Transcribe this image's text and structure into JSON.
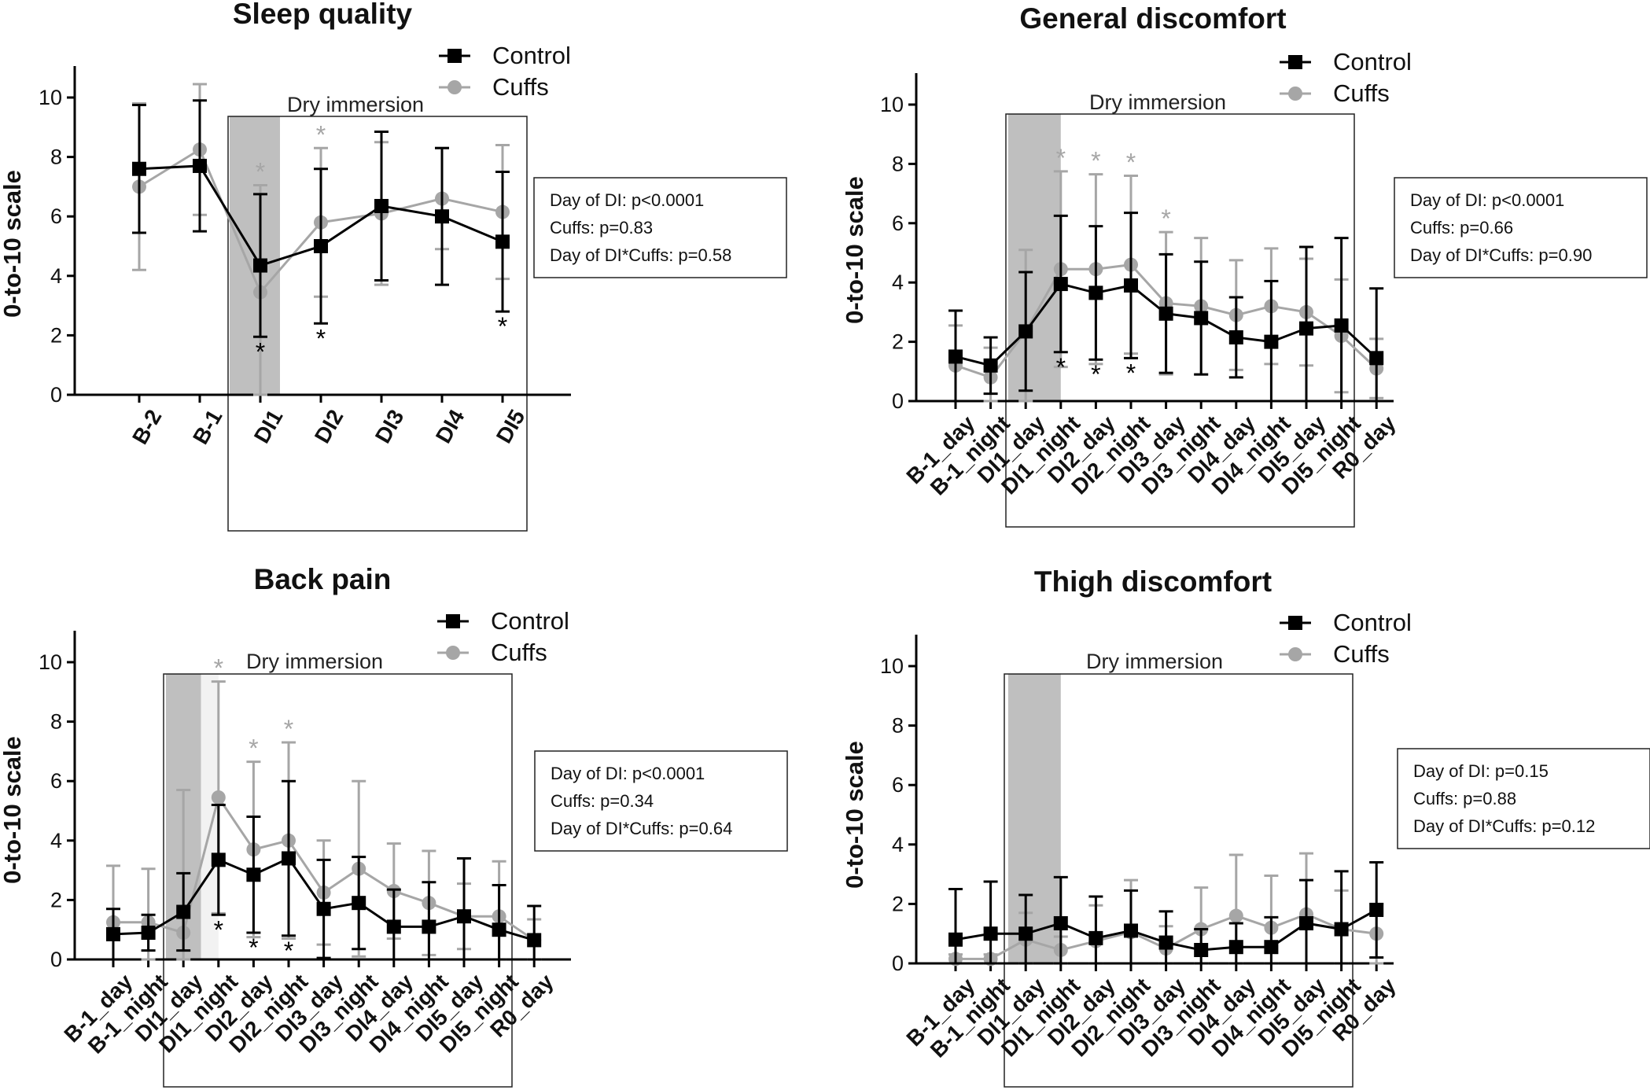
{
  "figure": {
    "legend": {
      "control": "Control",
      "cuffs": "Cuffs"
    },
    "region_label": "Dry immersion",
    "ylabel": "0-to-10 scale",
    "colors": {
      "control": "#000000",
      "cuffs": "#a6a6a6",
      "shade": "#bfbfbf",
      "shade_light": "#f2f2f2"
    }
  },
  "chart_data": [
    {
      "type": "line",
      "title": "Sleep quality",
      "xlabel": "",
      "ylabel": "0-to-10 scale",
      "ylim": [
        0,
        11
      ],
      "yticks": [
        0,
        2,
        4,
        6,
        8,
        10
      ],
      "categories": [
        "B-2",
        "B-1",
        "DI1",
        "DI2",
        "DI3",
        "DI4",
        "DI5"
      ],
      "series": [
        {
          "name": "Control",
          "values": [
            7.6,
            7.7,
            4.35,
            5.0,
            6.35,
            6.0,
            5.15
          ],
          "err": [
            2.15,
            2.2,
            2.4,
            2.6,
            2.5,
            2.3,
            2.35
          ]
        },
        {
          "name": "Cuffs",
          "values": [
            7.0,
            8.25,
            3.45,
            5.8,
            6.1,
            6.6,
            6.15
          ],
          "err": [
            2.8,
            2.2,
            3.6,
            2.5,
            2.4,
            1.7,
            2.25
          ]
        }
      ],
      "shaded_category": 2,
      "dry_immersion_box": [
        2,
        6
      ],
      "stats": [
        "Day of DI: p<0.0001",
        "Cuffs: p=0.83",
        "Day of DI*Cuffs: p=0.58"
      ],
      "significance": [
        {
          "series": "Control",
          "index": 2,
          "position": "below",
          "text": "*"
        },
        {
          "series": "Control",
          "index": 3,
          "position": "below",
          "text": "*"
        },
        {
          "series": "Control",
          "index": 6,
          "position": "below",
          "text": "*"
        },
        {
          "series": "Cuffs",
          "index": 2,
          "position": "above",
          "text": "*"
        },
        {
          "series": "Cuffs",
          "index": 3,
          "position": "above",
          "text": "*"
        }
      ]
    },
    {
      "type": "line",
      "title": "General discomfort",
      "xlabel": "",
      "ylabel": "0-to-10 scale",
      "ylim": [
        0,
        11
      ],
      "yticks": [
        0,
        2,
        4,
        6,
        8,
        10
      ],
      "categories": [
        "B-1_day",
        "B-1_night",
        "DI1_day",
        "DI1_night",
        "DI2_day",
        "DI2_night",
        "DI3_day",
        "DI3_night",
        "DI4_day",
        "DI4_night",
        "DI5_day",
        "DI5_night",
        "R0_day"
      ],
      "series": [
        {
          "name": "Control",
          "values": [
            1.5,
            1.2,
            2.35,
            3.95,
            3.65,
            3.9,
            2.95,
            2.8,
            2.15,
            2.0,
            2.45,
            2.55,
            1.45
          ],
          "err": [
            1.55,
            0.95,
            2.0,
            2.3,
            2.25,
            2.45,
            2.0,
            1.9,
            1.35,
            2.05,
            2.75,
            2.95,
            2.35
          ]
        },
        {
          "name": "Cuffs",
          "values": [
            1.2,
            0.8,
            2.35,
            4.45,
            4.45,
            4.6,
            3.3,
            3.2,
            2.9,
            3.2,
            3.0,
            2.2,
            1.1
          ],
          "err": [
            1.35,
            1.0,
            2.75,
            3.3,
            3.2,
            3.0,
            2.4,
            2.3,
            1.85,
            1.95,
            1.8,
            1.9,
            1.0
          ]
        }
      ],
      "shaded_category": 2,
      "dry_immersion_box": [
        2,
        11
      ],
      "stats": [
        "Day of DI: p<0.0001",
        "Cuffs: p=0.66",
        "Day of DI*Cuffs: p=0.90"
      ],
      "significance": [
        {
          "series": "Control",
          "index": 3,
          "position": "below",
          "text": "*"
        },
        {
          "series": "Control",
          "index": 4,
          "position": "below",
          "text": "*"
        },
        {
          "series": "Control",
          "index": 5,
          "position": "below",
          "text": "*"
        },
        {
          "series": "Cuffs",
          "index": 3,
          "position": "above",
          "text": "*"
        },
        {
          "series": "Cuffs",
          "index": 4,
          "position": "above",
          "text": "*"
        },
        {
          "series": "Cuffs",
          "index": 5,
          "position": "above",
          "text": "*"
        },
        {
          "series": "Cuffs",
          "index": 6,
          "position": "above",
          "text": "*"
        }
      ]
    },
    {
      "type": "line",
      "title": "Back pain",
      "xlabel": "",
      "ylabel": "0-to-10 scale",
      "ylim": [
        0,
        11
      ],
      "yticks": [
        0,
        2,
        4,
        6,
        8,
        10
      ],
      "categories": [
        "B-1_day",
        "B-1_night",
        "DI1_day",
        "DI1_night",
        "DI2_day",
        "DI2_night",
        "DI3_day",
        "DI3_night",
        "DI4_day",
        "DI4_night",
        "DI5_day",
        "DI5_night",
        "R0_day"
      ],
      "series": [
        {
          "name": "Control",
          "values": [
            0.85,
            0.9,
            1.6,
            3.35,
            2.85,
            3.4,
            1.7,
            1.9,
            1.1,
            1.1,
            1.45,
            1.0,
            0.65
          ],
          "err": [
            0.85,
            0.6,
            1.3,
            1.85,
            1.95,
            2.6,
            1.65,
            1.55,
            1.25,
            1.5,
            1.95,
            1.5,
            1.15
          ]
        },
        {
          "name": "Cuffs",
          "values": [
            1.25,
            1.25,
            0.9,
            5.45,
            3.7,
            4.0,
            2.25,
            3.05,
            2.3,
            1.9,
            1.45,
            1.45,
            0.65
          ],
          "err": [
            1.9,
            1.8,
            4.8,
            3.9,
            2.95,
            3.3,
            1.75,
            2.95,
            1.6,
            1.75,
            1.1,
            1.85,
            0.7
          ]
        }
      ],
      "shaded_category": 2,
      "dry_immersion_box": [
        2,
        11
      ],
      "stats": [
        "Day of DI: p<0.0001",
        "Cuffs: p=0.34",
        "Day of DI*Cuffs: p=0.64"
      ],
      "significance": [
        {
          "series": "Control",
          "index": 3,
          "position": "below",
          "text": "*"
        },
        {
          "series": "Control",
          "index": 4,
          "position": "below",
          "text": "*"
        },
        {
          "series": "Control",
          "index": 5,
          "position": "below",
          "text": "*"
        },
        {
          "series": "Cuffs",
          "index": 3,
          "position": "above",
          "text": "*"
        },
        {
          "series": "Cuffs",
          "index": 4,
          "position": "above",
          "text": "*"
        },
        {
          "series": "Cuffs",
          "index": 5,
          "position": "above",
          "text": "*"
        }
      ]
    },
    {
      "type": "line",
      "title": "Thigh discomfort",
      "xlabel": "",
      "ylabel": "0-to-10 scale",
      "ylim": [
        0,
        11
      ],
      "yticks": [
        0,
        2,
        4,
        6,
        8,
        10
      ],
      "categories": [
        "B-1_day",
        "B-1_night",
        "DI1_day",
        "DI1_night",
        "DI2_day",
        "DI2_night",
        "DI3_day",
        "DI3_night",
        "DI4_day",
        "DI4_night",
        "DI5_day",
        "DI5_night",
        "R0_day"
      ],
      "series": [
        {
          "name": "Control",
          "values": [
            0.8,
            1.0,
            1.0,
            1.35,
            0.85,
            1.1,
            0.7,
            0.45,
            0.55,
            0.55,
            1.35,
            1.15,
            1.8
          ],
          "err": [
            1.7,
            1.75,
            1.3,
            1.55,
            1.4,
            1.35,
            1.05,
            0.7,
            0.8,
            1.0,
            1.45,
            1.95,
            1.6
          ]
        },
        {
          "name": "Cuffs",
          "values": [
            0.15,
            0.15,
            0.8,
            0.45,
            0.75,
            1.05,
            0.5,
            1.15,
            1.6,
            1.2,
            1.65,
            1.15,
            1.0
          ],
          "err": [
            0.15,
            0.15,
            0.9,
            0.45,
            1.2,
            1.75,
            0.75,
            1.4,
            2.05,
            1.75,
            2.05,
            1.3,
            1.0
          ]
        }
      ],
      "shaded_category": 2,
      "dry_immersion_box": [
        2,
        11
      ],
      "stats": [
        "Day of DI: p=0.15",
        "Cuffs: p=0.88",
        "Day of DI*Cuffs: p=0.12"
      ],
      "significance": []
    }
  ]
}
